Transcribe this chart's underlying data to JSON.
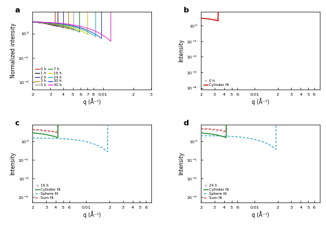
{
  "panel_a": {
    "label": "a",
    "ylabel": "Normalized intensity",
    "xlabel": "q (Å⁻¹)",
    "xlim": [
      0.002,
      0.03
    ],
    "ylim": [
      0.005,
      8
    ],
    "lines": [
      {
        "label": "0 h",
        "color": "#e03020",
        "lw": 0.9
      },
      {
        "label": "1 h",
        "color": "#222222",
        "lw": 0.9
      },
      {
        "label": "2 h",
        "color": "#3333bb",
        "lw": 0.9
      },
      {
        "label": "3 h",
        "color": "#cc8800",
        "lw": 0.9
      },
      {
        "label": "5 h",
        "color": "#999999",
        "lw": 0.9
      },
      {
        "label": "7 h",
        "color": "#228833",
        "lw": 0.9
      },
      {
        "label": "16 h",
        "color": "#cccc00",
        "lw": 0.9
      },
      {
        "label": "24 h",
        "color": "#22aaaa",
        "lw": 0.9
      },
      {
        "label": "30 h",
        "color": "#3344cc",
        "lw": 0.9
      },
      {
        "label": "40 h",
        "color": "#ee22cc",
        "lw": 0.9
      }
    ]
  },
  "panel_b": {
    "label": "b",
    "ylabel": "Intensity",
    "xlabel": "q (Å⁻¹)",
    "xlim": [
      0.002,
      0.07
    ],
    "ylim": [
      8e-05,
      8
    ],
    "scatter_color": "#aaaaaa",
    "scatter_label": "0 h",
    "fit_color": "#cc0000",
    "fit_label": "Cylinder fit"
  },
  "panel_c": {
    "label": "c",
    "ylabel": "Intensity",
    "xlabel": "q (Å⁻¹)",
    "xlim": [
      0.002,
      0.07
    ],
    "ylim": [
      0.0005,
      8
    ],
    "scatter_color": "#aaaaaa",
    "scatter_label": "16 h",
    "cyl_color": "#228833",
    "cyl_label": "Cylinder fit",
    "sph_color": "#2299bb",
    "sph_label": "Sphere fit",
    "sum_color": "#cc2222",
    "sum_label": "Sum fit"
  },
  "panel_d": {
    "label": "d",
    "ylabel": "Intensity",
    "xlabel": "q (Å⁻¹)",
    "xlim": [
      0.002,
      0.07
    ],
    "ylim": [
      0.0005,
      8
    ],
    "scatter_color": "#aaaaaa",
    "scatter_label": "24 h",
    "cyl_color": "#228833",
    "cyl_label": "Cylinder fit",
    "sph_color": "#2299bb",
    "sph_label": "Sphere fit",
    "sum_color": "#cc2222",
    "sum_label": "Sum fit"
  }
}
